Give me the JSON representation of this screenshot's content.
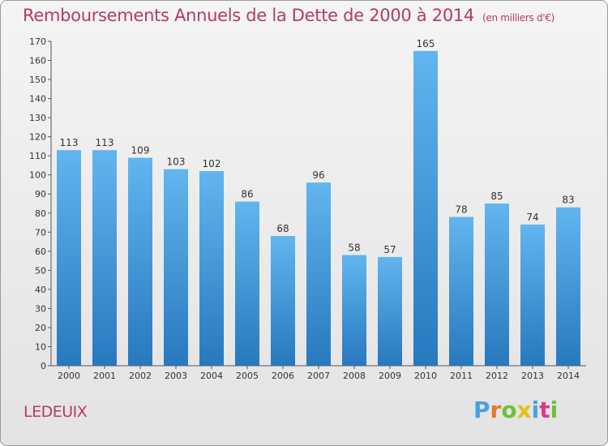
{
  "header": {
    "title": "Remboursements Annuels de la Dette de 2000 à 2014",
    "unit": "(en milliers d'€)"
  },
  "footer": {
    "commune": "LEDEUIX",
    "logo_text": "Proxiti"
  },
  "colors": {
    "title": "#b33a6a",
    "bar_top": "#62b5ee",
    "bar_bottom": "#2878be",
    "logo": [
      "#4a9fe0",
      "#e07a2a",
      "#6cc23a",
      "#e0c21a",
      "#4a9fe0",
      "#d83a8a",
      "#6cc23a"
    ]
  },
  "chart_data": {
    "type": "bar",
    "title": "Remboursements Annuels de la Dette de 2000 à 2014",
    "subtitle": "(en milliers d'€)",
    "xlabel": "",
    "ylabel": "",
    "categories": [
      "2000",
      "2001",
      "2002",
      "2003",
      "2004",
      "2005",
      "2006",
      "2007",
      "2008",
      "2009",
      "2010",
      "2011",
      "2012",
      "2013",
      "2014"
    ],
    "values": [
      113,
      113,
      109,
      103,
      102,
      86,
      68,
      96,
      58,
      57,
      165,
      78,
      85,
      74,
      83
    ],
    "ylim": [
      0,
      170
    ],
    "yticks": [
      0,
      10,
      20,
      30,
      40,
      50,
      60,
      70,
      80,
      90,
      100,
      110,
      120,
      130,
      140,
      150,
      160,
      170
    ],
    "grid": false,
    "legend": "none"
  }
}
